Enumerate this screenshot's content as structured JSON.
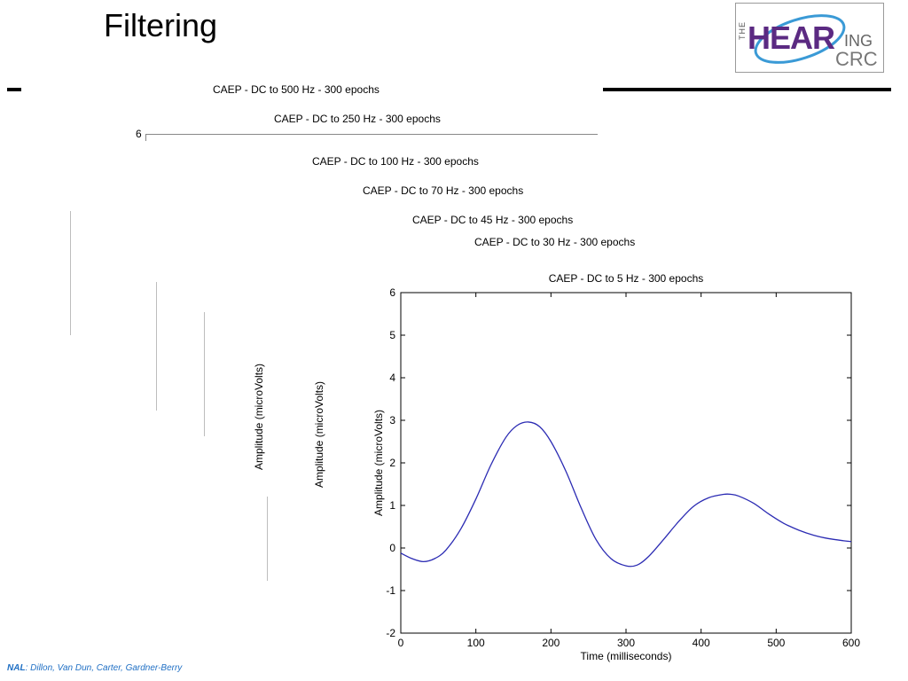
{
  "slide": {
    "title": "Filtering",
    "footer_org": "NAL",
    "footer_authors": ": Dillon, Van Dun, Carter, Gardner-Berry"
  },
  "logo": {
    "the": "THE",
    "hear": "HEAR",
    "ing": "ING",
    "crc": "CRC",
    "brand_color": "#5b2a82"
  },
  "stacked_charts": [
    {
      "title": "CAEP - DC to 500 Hz - 300 epochs"
    },
    {
      "title": "CAEP - DC to 250 Hz - 300 epochs",
      "ytick_top": "6"
    },
    {
      "title": "CAEP - DC to 100 Hz - 300 epochs"
    },
    {
      "title": "CAEP - DC to 70 Hz - 300 epochs"
    },
    {
      "title": "CAEP - DC to 45 Hz - 300 epochs",
      "ylabel": "Amplitude (microVolts)"
    },
    {
      "title": "CAEP - DC to 30 Hz - 300 epochs",
      "ylabel": "Amplitude (microVolts)"
    }
  ],
  "chart_data": {
    "type": "line",
    "title": "CAEP - DC to 5 Hz - 300 epochs",
    "xlabel": "Time (milliseconds)",
    "ylabel": "Amplitude (microVolts)",
    "xlim": [
      0,
      600
    ],
    "ylim": [
      -2,
      6
    ],
    "xticks": [
      0,
      100,
      200,
      300,
      400,
      500,
      600
    ],
    "yticks": [
      -2,
      -1,
      0,
      1,
      2,
      3,
      4,
      5,
      6
    ],
    "grid": false,
    "line_color": "#2b2bb3",
    "series": [
      {
        "x": [
          0,
          15,
          30,
          45,
          60,
          80,
          100,
          120,
          140,
          155,
          170,
          185,
          200,
          220,
          240,
          260,
          280,
          300,
          315,
          330,
          350,
          370,
          390,
          410,
          430,
          440,
          450,
          470,
          490,
          510,
          530,
          550,
          570,
          590,
          600
        ],
        "y": [
          -0.12,
          -0.25,
          -0.32,
          -0.25,
          -0.05,
          0.45,
          1.15,
          1.95,
          2.6,
          2.88,
          2.96,
          2.85,
          2.5,
          1.8,
          0.95,
          0.2,
          -0.25,
          -0.42,
          -0.4,
          -0.2,
          0.2,
          0.62,
          0.98,
          1.18,
          1.26,
          1.26,
          1.22,
          1.05,
          0.8,
          0.58,
          0.42,
          0.3,
          0.22,
          0.17,
          0.15
        ]
      }
    ]
  }
}
